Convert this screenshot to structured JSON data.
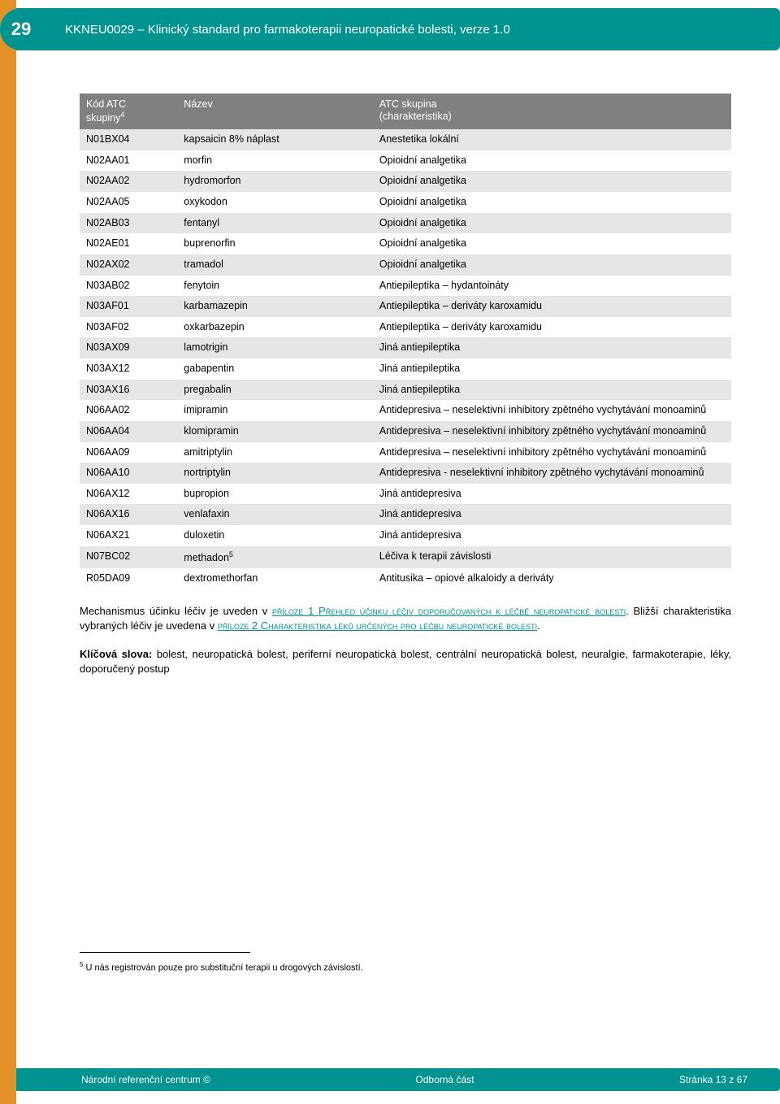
{
  "colors": {
    "teal": "#009390",
    "orange": "#e39225",
    "header_gray": "#808080",
    "row_alt": "#e6e6e6",
    "white": "#ffffff",
    "text": "#000000"
  },
  "typography": {
    "body_family": "Verdana",
    "body_size_pt": 10,
    "header_size_pt": 11,
    "footnote_size_pt": 8
  },
  "page_number": "29",
  "header_title": "KKNEU0029 – Klinický standard pro farmakoterapii neuropatické bolesti, verze 1.0",
  "table": {
    "columns": [
      {
        "label": "Kód ATC\nskupiny",
        "sup": "4",
        "width": "15%"
      },
      {
        "label": "Název",
        "width": "30%"
      },
      {
        "label": "ATC skupina\n(charakteristika)",
        "width": "55%"
      }
    ],
    "rows": [
      [
        "N01BX04",
        "kapsaicin 8% náplast",
        "Anestetika lokální"
      ],
      [
        "N02AA01",
        "morfin",
        "Opioidní analgetika"
      ],
      [
        "N02AA02",
        "hydromorfon",
        "Opioidní analgetika"
      ],
      [
        "N02AA05",
        "oxykodon",
        "Opioidní analgetika"
      ],
      [
        "N02AB03",
        "fentanyl",
        "Opioidní analgetika"
      ],
      [
        "N02AE01",
        "buprenorfin",
        "Opioidní analgetika"
      ],
      [
        "N02AX02",
        "tramadol",
        "Opioidní analgetika"
      ],
      [
        "N03AB02",
        "fenytoin",
        "Antiepileptika – hydantoináty"
      ],
      [
        "N03AF01",
        "karbamazepin",
        "Antiepileptika – deriváty karoxamidu"
      ],
      [
        "N03AF02",
        "oxkarbazepin",
        "Antiepileptika – deriváty karoxamidu"
      ],
      [
        "N03AX09",
        "lamotrigin",
        "Jiná antiepileptika"
      ],
      [
        "N03AX12",
        "gabapentin",
        "Jiná antiepileptika"
      ],
      [
        "N03AX16",
        "pregabalin",
        "Jiná antiepileptika"
      ],
      [
        "N06AA02",
        "imipramin",
        "Antidepresiva – neselektivní inhibitory zpětného vychytávání monoaminů"
      ],
      [
        "N06AA04",
        "klomipramin",
        "Antidepresiva – neselektivní inhibitory zpětného vychytávání monoaminů"
      ],
      [
        "N06AA09",
        "amitriptylin",
        "Antidepresiva – neselektivní inhibitory zpětného vychytávání monoaminů"
      ],
      [
        "N06AA10",
        "nortriptylin",
        "Antidepresiva - neselektivní inhibitory zpětného vychytávání monoaminů"
      ],
      [
        "N06AX12",
        "bupropion",
        "Jiná antidepresiva"
      ],
      [
        "N06AX16",
        "venlafaxin",
        "Jiná antidepresiva"
      ],
      [
        "N06AX21",
        "duloxetin",
        "Jiná antidepresiva"
      ],
      [
        "N07BC02",
        "methadon",
        "Léčiva k terapii závislosti"
      ],
      [
        "R05DA09",
        "dextromethorfan",
        "Antitusika – opiové alkaloidy a deriváty"
      ]
    ],
    "row_sup": {
      "20": "5"
    }
  },
  "paragraph": {
    "lead": "Mechanismus účinku léčiv je uveden v ",
    "link1": "příloze 1 Přehled účinku léčiv doporučovaných k léčbě neuropatické bolesti",
    "mid": ". Bližší charakteristika vybraných léčiv je uvedena v ",
    "link2": "příloze 2 Charakteristika léků určených pro léčbu neuropatické bolesti",
    "end": "."
  },
  "keywords": {
    "label": "Klíčová slova:",
    "text": " bolest, neuropatická bolest, periferní neuropatická bolest, centrální neuropatická bolest, neuralgie, farmakoterapie, léky, doporučený postup"
  },
  "footnote": {
    "marker": "5",
    "text": " U nás registrován pouze pro substituční terapii u drogových závislostí."
  },
  "footer": {
    "left": "Národní referenční centrum ©",
    "center": "Odborná část",
    "right": "Stránka 13 z 67"
  }
}
